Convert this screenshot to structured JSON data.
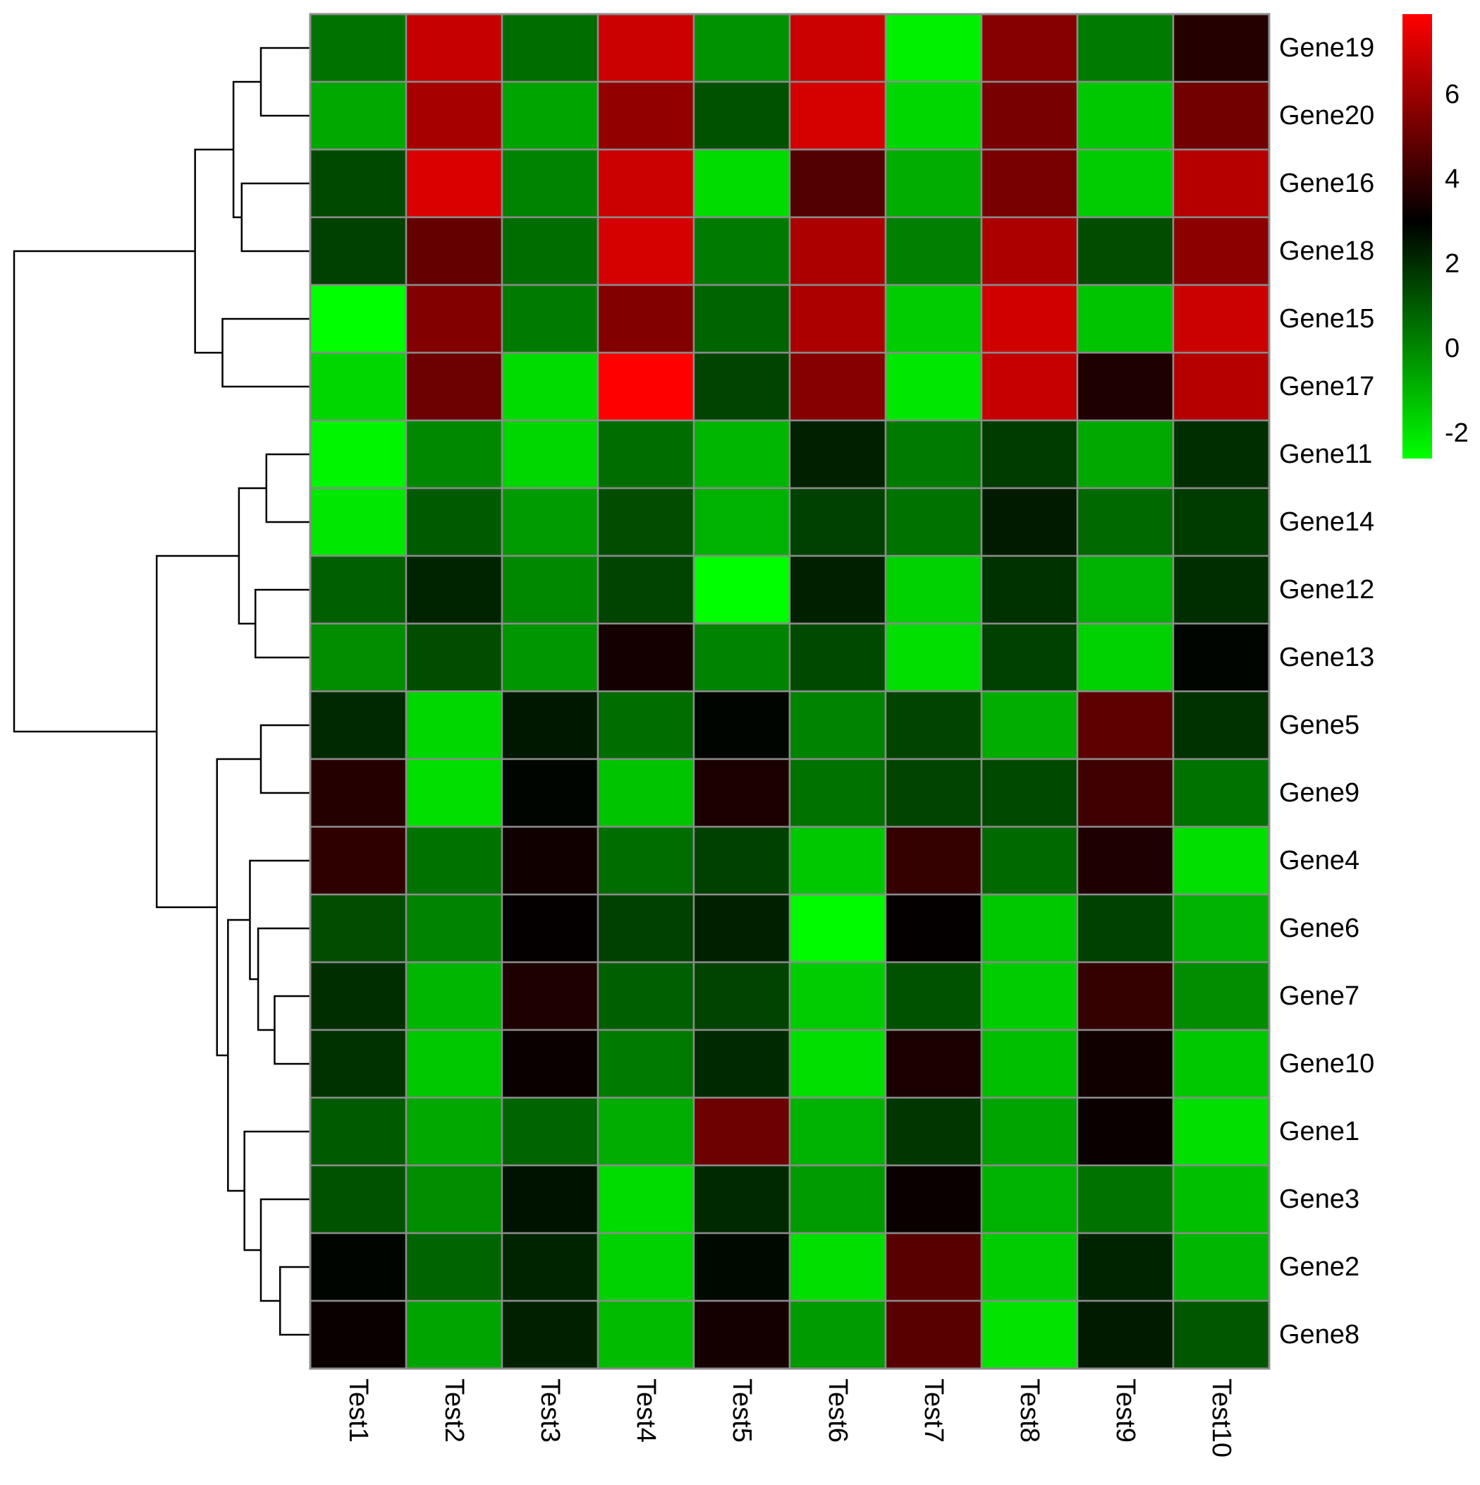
{
  "chart_data": {
    "type": "heatmap",
    "title": "",
    "columns": [
      "Test1",
      "Test2",
      "Test3",
      "Test4",
      "Test5",
      "Test6",
      "Test7",
      "Test8",
      "Test9",
      "Test10"
    ],
    "rows": [
      "Gene19",
      "Gene20",
      "Gene16",
      "Gene18",
      "Gene15",
      "Gene17",
      "Gene11",
      "Gene14",
      "Gene12",
      "Gene13",
      "Gene5",
      "Gene9",
      "Gene4",
      "Gene6",
      "Gene7",
      "Gene10",
      "Gene1",
      "Gene3",
      "Gene2",
      "Gene8"
    ],
    "values": [
      [
        0.5,
        6.8,
        0.6,
        6.9,
        -0.2,
        6.9,
        -2.3,
        5.6,
        0.3,
        3.7
      ],
      [
        -0.7,
        6.2,
        -0.6,
        5.8,
        1.2,
        7.1,
        -1.7,
        5.3,
        -1.4,
        5.2
      ],
      [
        1.4,
        7.2,
        0.1,
        6.9,
        -1.8,
        4.6,
        -0.8,
        5.3,
        -1.5,
        6.5
      ],
      [
        1.6,
        4.9,
        0.6,
        7.1,
        0.3,
        6.3,
        0.2,
        6.3,
        1.3,
        5.7
      ],
      [
        -2.6,
        5.5,
        0.3,
        5.5,
        0.8,
        6.3,
        -1.5,
        7.0,
        -1.3,
        6.9
      ],
      [
        -1.7,
        5.1,
        -1.8,
        7.9,
        1.5,
        5.6,
        -2.1,
        6.8,
        3.6,
        6.5
      ],
      [
        -2.4,
        0.0,
        -1.7,
        0.6,
        -1.0,
        2.3,
        0.3,
        1.7,
        -0.7,
        2.0
      ],
      [
        -2.1,
        1.0,
        -0.4,
        1.3,
        -0.9,
        1.6,
        0.5,
        2.4,
        0.7,
        1.7
      ],
      [
        0.9,
        2.2,
        0.0,
        1.5,
        -2.6,
        2.3,
        -1.6,
        1.9,
        -0.9,
        2.0
      ],
      [
        -0.1,
        1.3,
        -0.3,
        3.4,
        0.1,
        1.4,
        -1.9,
        1.6,
        -1.6,
        2.9
      ],
      [
        2.1,
        -1.7,
        2.5,
        0.6,
        2.9,
        0.1,
        1.5,
        -0.8,
        4.8,
        1.9
      ],
      [
        3.7,
        -1.9,
        2.9,
        -1.3,
        3.5,
        0.5,
        1.5,
        1.4,
        4.2,
        0.5
      ],
      [
        3.9,
        0.5,
        3.3,
        0.6,
        1.6,
        -1.4,
        4.0,
        0.7,
        3.6,
        -1.9
      ],
      [
        1.3,
        0.1,
        3.1,
        1.6,
        2.3,
        -2.5,
        3.1,
        -1.4,
        1.6,
        -0.9
      ],
      [
        2.0,
        -1.0,
        3.6,
        0.9,
        1.5,
        -1.5,
        1.2,
        -1.5,
        4.0,
        -0.1
      ],
      [
        1.9,
        -1.4,
        3.2,
        0.3,
        2.1,
        -1.9,
        3.5,
        -1.2,
        3.3,
        -1.4
      ],
      [
        1.0,
        -0.7,
        0.8,
        -0.8,
        5.1,
        -0.9,
        1.8,
        -0.6,
        3.2,
        -1.9
      ],
      [
        1.2,
        -0.1,
        2.6,
        -1.8,
        2.1,
        -0.4,
        3.2,
        -0.9,
        0.5,
        -1.2
      ],
      [
        2.9,
        0.8,
        2.2,
        -1.6,
        2.8,
        -1.9,
        4.7,
        -1.5,
        2.2,
        -1.0
      ],
      [
        3.2,
        -0.6,
        2.3,
        -1.1,
        3.4,
        -0.4,
        4.7,
        -2.0,
        2.4,
        1.1
      ]
    ],
    "color_scale": {
      "min": -2.6,
      "max": 7.9,
      "stops": [
        {
          "value": -2.6,
          "color": "#00ff00"
        },
        {
          "value": 3.0,
          "color": "#000000"
        },
        {
          "value": 7.9,
          "color": "#ff0000"
        }
      ]
    },
    "colorbar_ticks": [
      "6",
      "4",
      "2",
      "0",
      "-2"
    ],
    "colorbar_tick_values": [
      6,
      4,
      2,
      0,
      -2
    ],
    "row_dendrogram": {
      "merges": [
        [
          0,
          1,
          0.9
        ],
        [
          2,
          3,
          1.25
        ],
        [
          4,
          5,
          1.6
        ],
        [
          20,
          21,
          1.4
        ],
        [
          22,
          23,
          2.1
        ],
        [
          6,
          7,
          0.8
        ],
        [
          8,
          9,
          1.0
        ],
        [
          25,
          26,
          1.3
        ],
        [
          10,
          11,
          0.9
        ],
        [
          14,
          15,
          0.65
        ],
        [
          13,
          29,
          0.95
        ],
        [
          12,
          30,
          1.1
        ],
        [
          18,
          19,
          0.55
        ],
        [
          17,
          32,
          0.9
        ],
        [
          16,
          33,
          1.2
        ],
        [
          31,
          34,
          1.5
        ],
        [
          28,
          35,
          1.7
        ],
        [
          27,
          36,
          2.8
        ],
        [
          24,
          37,
          5.4
        ]
      ]
    },
    "legend_position": "top-right"
  }
}
